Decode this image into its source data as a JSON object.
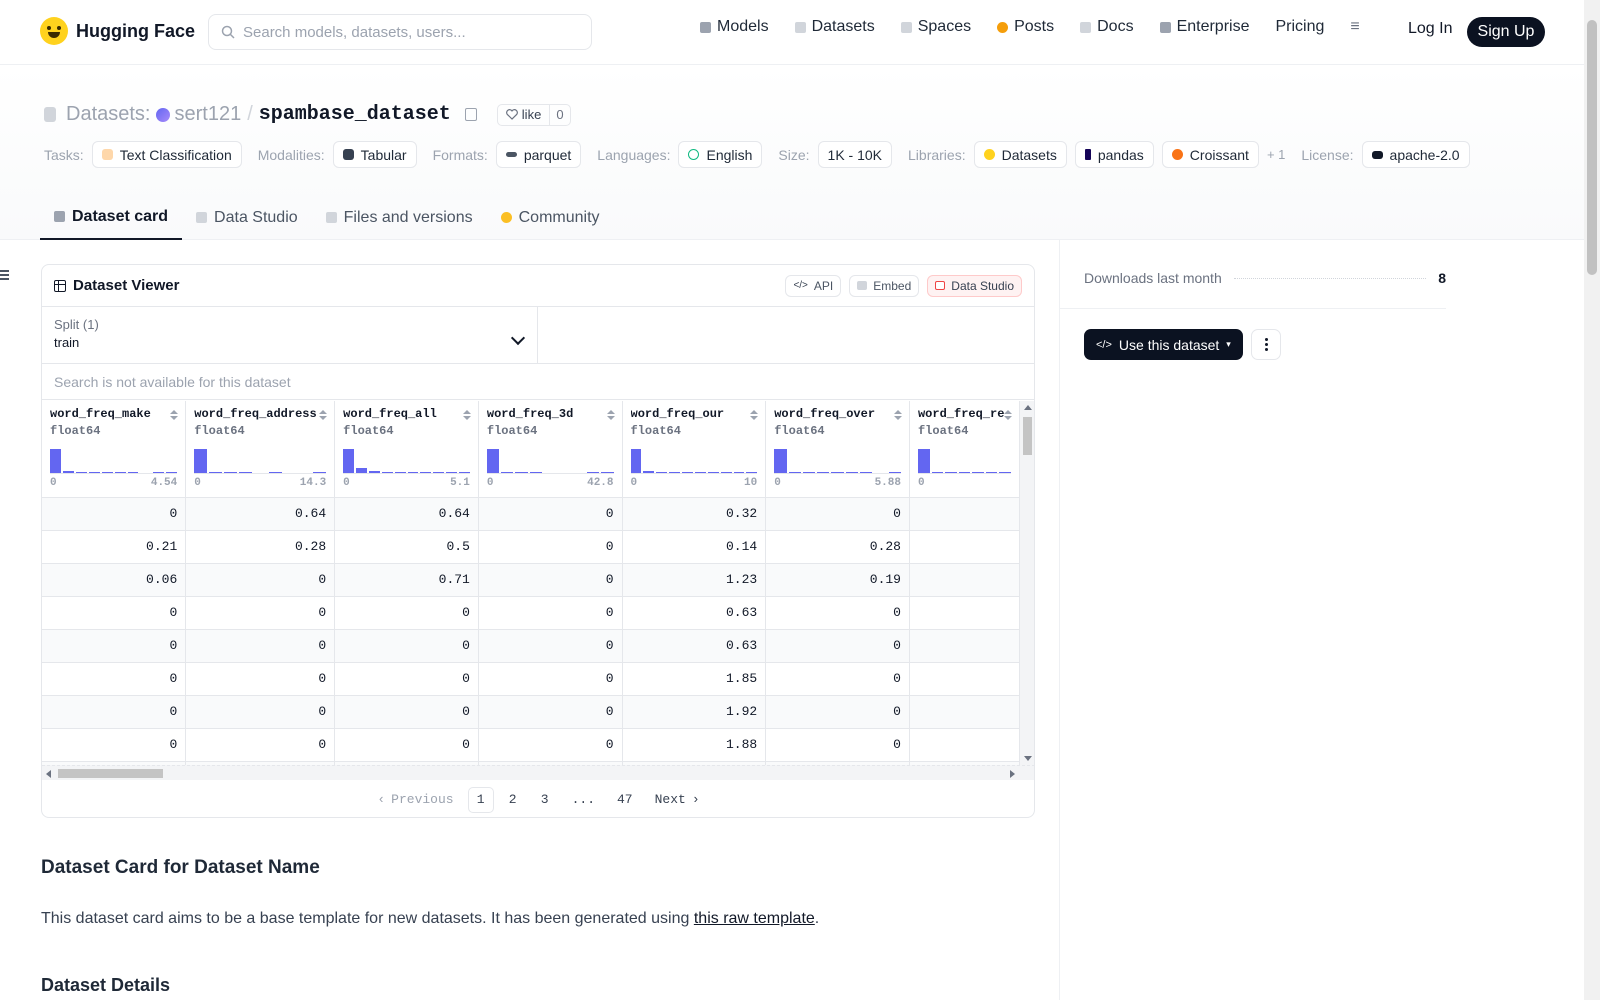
{
  "header": {
    "logo": "Hugging Face",
    "search_placeholder": "Search models, datasets, users...",
    "nav": [
      {
        "label": "Models",
        "icon": "cube-icon",
        "color": "#9ca3af"
      },
      {
        "label": "Datasets",
        "icon": "database-icon",
        "color": "#d1d5db"
      },
      {
        "label": "Spaces",
        "icon": "grid-icon",
        "color": "#d1d5db"
      },
      {
        "label": "Posts",
        "icon": "chat-icon",
        "color": "#f59e0b"
      },
      {
        "label": "Docs",
        "icon": "book-icon",
        "color": "#d1d5db"
      },
      {
        "label": "Enterprise",
        "icon": "building-icon",
        "color": "#9ca3af"
      },
      {
        "label": "Pricing",
        "icon": "",
        "color": ""
      }
    ],
    "menu_icon": "≡",
    "login": "Log In",
    "signup": "Sign Up"
  },
  "repo": {
    "type_label": "Datasets:",
    "owner": "sert121",
    "slash": "/",
    "name": "spambase_dataset",
    "like_label": "like",
    "like_count": "0"
  },
  "tags": {
    "tasks_label": "Tasks:",
    "task": "Text Classification",
    "modalities_label": "Modalities:",
    "modality": "Tabular",
    "formats_label": "Formats:",
    "format": "parquet",
    "languages_label": "Languages:",
    "language": "English",
    "size_label": "Size:",
    "size": "1K - 10K",
    "libraries_label": "Libraries:",
    "libraries": [
      "Datasets",
      "pandas",
      "Croissant"
    ],
    "libraries_more": "+ 1",
    "license_label": "License:",
    "license": "apache-2.0"
  },
  "tabs": [
    {
      "label": "Dataset card",
      "icon": "cube-icon",
      "active": true
    },
    {
      "label": "Data Studio",
      "icon": "table-icon",
      "active": false
    },
    {
      "label": "Files and versions",
      "icon": "files-icon",
      "active": false
    },
    {
      "label": "Community",
      "icon": "chat-icon",
      "active": false
    }
  ],
  "viewer": {
    "title": "Dataset Viewer",
    "buttons": [
      "API",
      "Embed",
      "Data Studio"
    ],
    "split_label": "Split (1)",
    "split_value": "train",
    "search_placeholder": "Search is not available for this dataset",
    "columns": [
      {
        "name": "word_freq_make",
        "type": "float64",
        "min": "0",
        "max": "4.54",
        "hist": [
          1,
          0.1,
          0.05,
          0.05,
          0.05,
          0.05,
          0.05,
          0,
          0.05,
          0.05
        ]
      },
      {
        "name": "word_freq_address",
        "type": "float64",
        "min": "0",
        "max": "14.3",
        "hist": [
          1,
          0.05,
          0.05,
          0.05,
          0,
          0.05,
          0,
          0,
          0.05
        ]
      },
      {
        "name": "word_freq_all",
        "type": "float64",
        "min": "0",
        "max": "5.1",
        "hist": [
          1,
          0.2,
          0.08,
          0.05,
          0.05,
          0.05,
          0.05,
          0.05,
          0.05,
          0.05
        ]
      },
      {
        "name": "word_freq_3d",
        "type": "float64",
        "min": "0",
        "max": "42.8",
        "hist": [
          1,
          0.05,
          0.05,
          0.05,
          0,
          0,
          0,
          0.05,
          0.05
        ]
      },
      {
        "name": "word_freq_our",
        "type": "float64",
        "min": "0",
        "max": "10",
        "hist": [
          1,
          0.1,
          0.05,
          0.05,
          0.05,
          0.05,
          0.05,
          0.05,
          0.05,
          0.05
        ]
      },
      {
        "name": "word_freq_over",
        "type": "float64",
        "min": "0",
        "max": "5.88",
        "hist": [
          1,
          0.05,
          0.05,
          0.05,
          0.05,
          0.05,
          0.05,
          0,
          0.05
        ]
      },
      {
        "name": "word_freq_re",
        "type": "float64",
        "min": "0",
        "max": "",
        "hist": [
          1,
          0.05,
          0.05,
          0.05,
          0.05,
          0.05,
          0.05
        ]
      }
    ],
    "rows": [
      [
        "0",
        "0.64",
        "0.64",
        "0",
        "0.32",
        "0",
        ""
      ],
      [
        "0.21",
        "0.28",
        "0.5",
        "0",
        "0.14",
        "0.28",
        ""
      ],
      [
        "0.06",
        "0",
        "0.71",
        "0",
        "1.23",
        "0.19",
        ""
      ],
      [
        "0",
        "0",
        "0",
        "0",
        "0.63",
        "0",
        ""
      ],
      [
        "0",
        "0",
        "0",
        "0",
        "0.63",
        "0",
        ""
      ],
      [
        "0",
        "0",
        "0",
        "0",
        "1.85",
        "0",
        ""
      ],
      [
        "0",
        "0",
        "0",
        "0",
        "1.92",
        "0",
        ""
      ],
      [
        "0",
        "0",
        "0",
        "0",
        "1.88",
        "0",
        ""
      ],
      [
        "",
        "",
        "",
        "",
        "",
        "",
        ""
      ]
    ],
    "pagination": {
      "previous": "Previous",
      "pages": [
        "1",
        "2",
        "3",
        "...",
        "47"
      ],
      "current": "1",
      "next": "Next"
    }
  },
  "sidebar": {
    "downloads_label": "Downloads last month",
    "downloads_value": "8",
    "use_button": "Use this dataset"
  },
  "card": {
    "heading": "Dataset Card for Dataset Name",
    "intro_before": "This dataset card aims to be a base template for new datasets. It has been generated using ",
    "intro_link": "this raw template",
    "intro_after": ".",
    "details_heading": "Dataset Details"
  }
}
